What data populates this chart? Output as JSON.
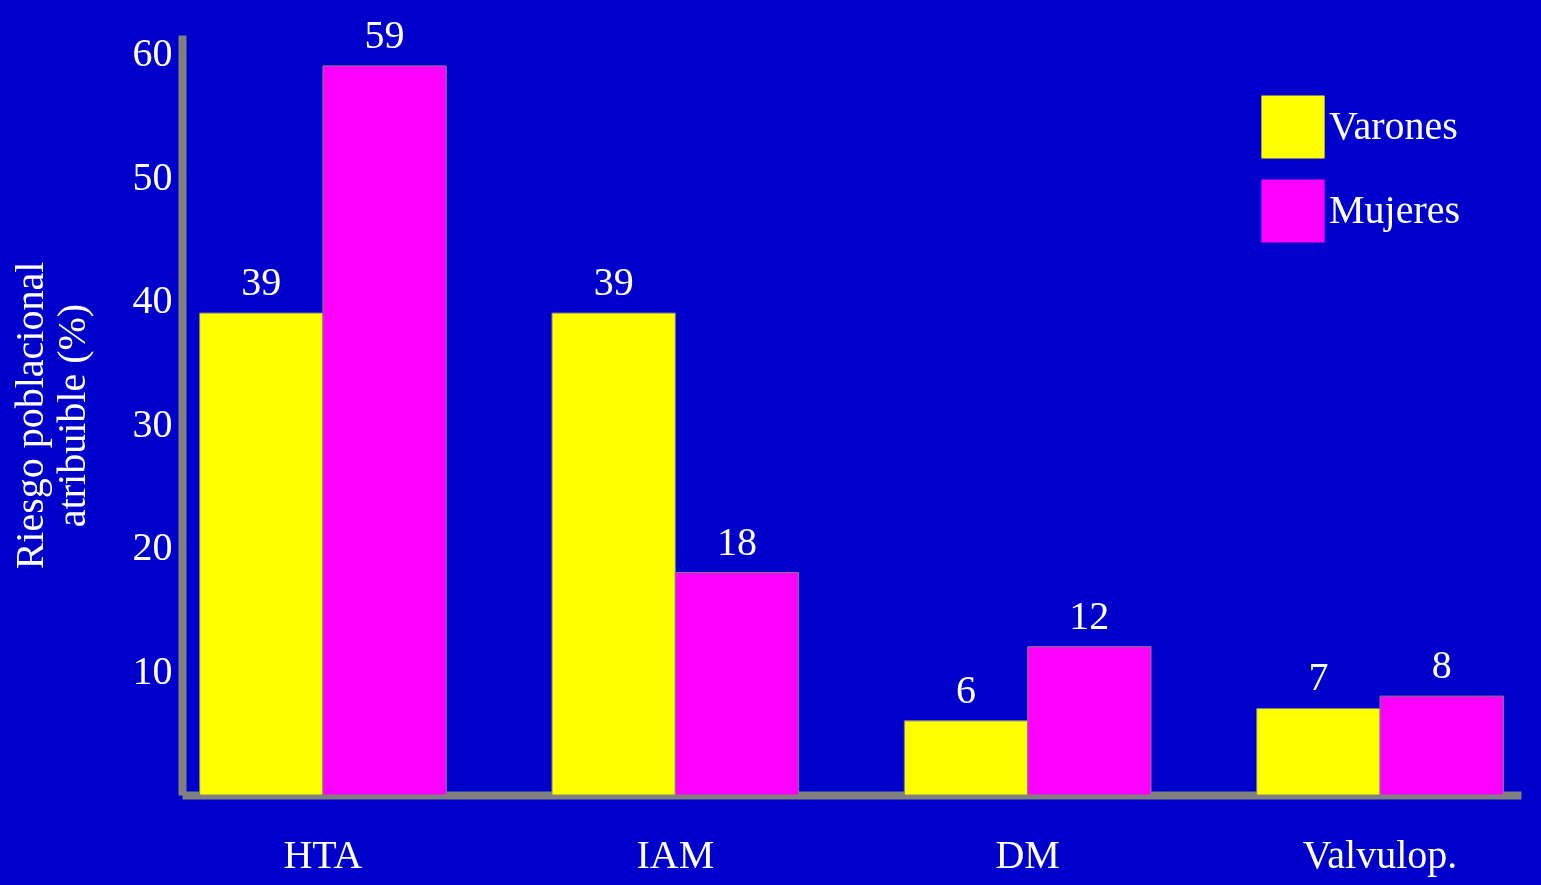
{
  "chart_data": {
    "type": "bar",
    "ylabel": "Riesgo poblacional atribuible (%)",
    "categories": [
      "HTA",
      "IAM",
      "DM",
      "Valvulop."
    ],
    "series": [
      {
        "name": "Varones",
        "color": "#ffff00",
        "values": [
          39,
          39,
          6,
          7
        ]
      },
      {
        "name": "Mujeres",
        "color": "#ff00ff",
        "values": [
          59,
          18,
          12,
          8
        ]
      }
    ],
    "ylim": [
      0,
      61.5
    ],
    "yticks": [
      10,
      20,
      30,
      40,
      50,
      60
    ],
    "data_labels": true,
    "grid": false,
    "legend": "top right"
  }
}
